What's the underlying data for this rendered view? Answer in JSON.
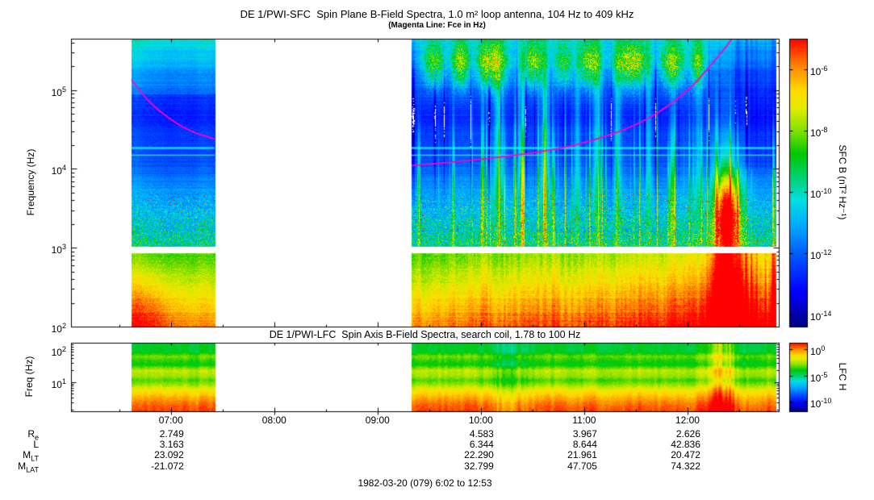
{
  "header": {
    "title": "DE 1/PWI-SFC  Spin Plane B-Field Spectra, 1.0 m² loop antenna, 104 Hz to 409 kHz",
    "subtitle": "(Magenta Line: Fce in Hz)"
  },
  "main_panel": {
    "ylabel": "Frequency (Hz)",
    "yticks": [
      {
        "base": "10",
        "exp": "5"
      },
      {
        "base": "10",
        "exp": "4"
      },
      {
        "base": "10",
        "exp": "3"
      },
      {
        "base": "10",
        "exp": "2"
      }
    ],
    "colorbar": {
      "label": "SFC B (nT² Hz⁻¹)",
      "ticks": [
        {
          "base": "10",
          "exp": "-6"
        },
        {
          "base": "10",
          "exp": "-8"
        },
        {
          "base": "10",
          "exp": "-10"
        },
        {
          "base": "10",
          "exp": "-12"
        },
        {
          "base": "10",
          "exp": "-14"
        }
      ]
    }
  },
  "lfc_panel": {
    "title": "DE 1/PWI-LFC  Spin Axis B-Field Spectra, search coil, 1.78 to 100 Hz",
    "ylabel": "Freq (Hz)",
    "yticks": [
      {
        "base": "10",
        "exp": "2"
      },
      {
        "base": "10",
        "exp": "1"
      }
    ],
    "colorbar": {
      "label": "LFC H",
      "ticks": [
        {
          "base": "10",
          "exp": "0"
        },
        {
          "base": "10",
          "exp": "-5"
        },
        {
          "base": "10",
          "exp": "-10"
        }
      ]
    }
  },
  "time_axis": {
    "ticks": [
      {
        "label": "07:00",
        "hour": 7
      },
      {
        "label": "08:00",
        "hour": 8
      },
      {
        "label": "09:00",
        "hour": 9
      },
      {
        "label": "10:00",
        "hour": 10
      },
      {
        "label": "11:00",
        "hour": 11
      },
      {
        "label": "12:00",
        "hour": 12
      }
    ]
  },
  "ephemeris": {
    "value_hours": [
      7,
      10,
      11,
      12
    ],
    "rows": [
      {
        "label": "R",
        "sub": "e",
        "values": [
          "2.749",
          "4.583",
          "3.967",
          "2.626"
        ]
      },
      {
        "label": "L",
        "sub": "",
        "values": [
          "3.163",
          "6.344",
          "8.644",
          "42.836"
        ]
      },
      {
        "label": "M",
        "sub": "LT",
        "values": [
          "23.092",
          "22.290",
          "21.961",
          "20.472"
        ]
      },
      {
        "label": "M",
        "sub": "LAT",
        "values": [
          "-21.072",
          "32.799",
          "47.705",
          "74.322"
        ]
      }
    ]
  },
  "footer": "1982-03-20 (079) 6:02 to 12:53",
  "colors": {
    "fce_line": "#ff00cc",
    "cyan_emission_line": "#00ffff",
    "frame": "#000000",
    "background": "#ffffff"
  },
  "chart_data": {
    "type": "heatmap",
    "subtype": "spectrogram",
    "date_label": "1982-03-20 (079) 6:02 to 12:53",
    "time_range_hours": [
      6.0333,
      12.8833
    ],
    "data_block_hours": [
      [
        6.62,
        7.42
      ],
      [
        9.33,
        12.85
      ]
    ],
    "time_tick_hours": [
      7,
      8,
      9,
      10,
      11,
      12
    ],
    "panels": [
      {
        "name": "SFC",
        "title": "DE 1/PWI-SFC  Spin Plane B-Field Spectra, 1.0 m² loop antenna, 104 Hz to 409 kHz",
        "y_scale": "log",
        "y_range_hz": [
          100,
          409000
        ],
        "y_tick_exponents": [
          2,
          3,
          4,
          5
        ],
        "band_gap_hz": [
          870,
          1050
        ],
        "colorbar_label": "SFC B (nT² Hz⁻¹)",
        "colorbar_tick_exponents": [
          -6,
          -8,
          -10,
          -12,
          -14
        ]
      },
      {
        "name": "LFC",
        "title": "DE 1/PWI-LFC  Spin Axis B-Field Spectra, search coil, 1.78 to 100 Hz",
        "y_scale": "log",
        "y_range_hz": [
          1.78,
          100
        ],
        "y_tick_exponents": [
          1,
          2
        ],
        "colorbar_label": "LFC H",
        "colorbar_tick_exponents": [
          0,
          -5,
          -10
        ]
      }
    ],
    "fce_line": {
      "label": "Fce in Hz",
      "segments": [
        {
          "points_t_hz": [
            [
              6.62,
              135000
            ],
            [
              6.75,
              79000
            ],
            [
              6.9,
              52500
            ],
            [
              7.05,
              38000
            ],
            [
              7.2,
              29500
            ],
            [
              7.42,
              24000
            ]
          ]
        },
        {
          "points_t_hz": [
            [
              9.33,
              11000
            ],
            [
              9.7,
              12000
            ],
            [
              10.2,
              14100
            ],
            [
              10.7,
              17400
            ],
            [
              11.1,
              22900
            ],
            [
              11.5,
              35500
            ],
            [
              11.8,
              60000
            ],
            [
              12.05,
              112000
            ],
            [
              12.25,
              224000
            ],
            [
              12.42,
              420000
            ],
            [
              12.5,
              630000
            ]
          ]
        }
      ]
    },
    "emission_lines_hz": [
      18500,
      15000
    ],
    "features": [
      "data gap between 7:25 and 9:20 UT",
      "intense yellow-orange broadband emission below ~900 Hz in both data blocks",
      "white instrument band gap near 1 kHz between low and high frequency bands",
      "green speckled emission 1-5 kHz",
      "dark blue low-intensity region 10-100 kHz",
      "narrowband cyan emission lines near 15-19 kHz across both blocks",
      "patchy green auroral hiss/chorus above 100 kHz from 9:30 to 12:15",
      "intense red burst around 12:20-12:30 extending from 100 Hz up to ~10 kHz",
      "vertical cyan/green impulsive streaks 1-30 kHz throughout second block"
    ]
  }
}
